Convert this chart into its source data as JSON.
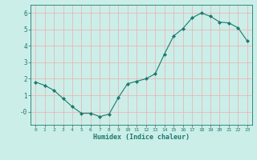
{
  "x": [
    0,
    1,
    2,
    3,
    4,
    5,
    6,
    7,
    8,
    9,
    10,
    11,
    12,
    13,
    14,
    15,
    16,
    17,
    18,
    19,
    20,
    21,
    22,
    23
  ],
  "y": [
    1.8,
    1.6,
    1.3,
    0.8,
    0.3,
    -0.1,
    -0.1,
    -0.3,
    -0.15,
    0.85,
    1.7,
    1.85,
    2.0,
    2.3,
    3.5,
    4.6,
    5.05,
    5.7,
    6.0,
    5.8,
    5.45,
    5.4,
    5.1,
    4.3
  ],
  "line_color": "#1a7a6e",
  "marker": "D",
  "marker_size": 2,
  "bg_color": "#cceee8",
  "grid_color": "#e8b8b8",
  "xlabel": "Humidex (Indice chaleur)",
  "xlabel_color": "#1a7a6e",
  "tick_color": "#1a7a6e",
  "ylim": [
    -0.8,
    6.5
  ],
  "xlim": [
    -0.5,
    23.5
  ],
  "yticks": [
    0,
    1,
    2,
    3,
    4,
    5,
    6
  ],
  "ytick_labels": [
    "-0",
    "1",
    "2",
    "3",
    "4",
    "5",
    "6"
  ],
  "xticks": [
    0,
    1,
    2,
    3,
    4,
    5,
    6,
    7,
    8,
    9,
    10,
    11,
    12,
    13,
    14,
    15,
    16,
    17,
    18,
    19,
    20,
    21,
    22,
    23
  ]
}
